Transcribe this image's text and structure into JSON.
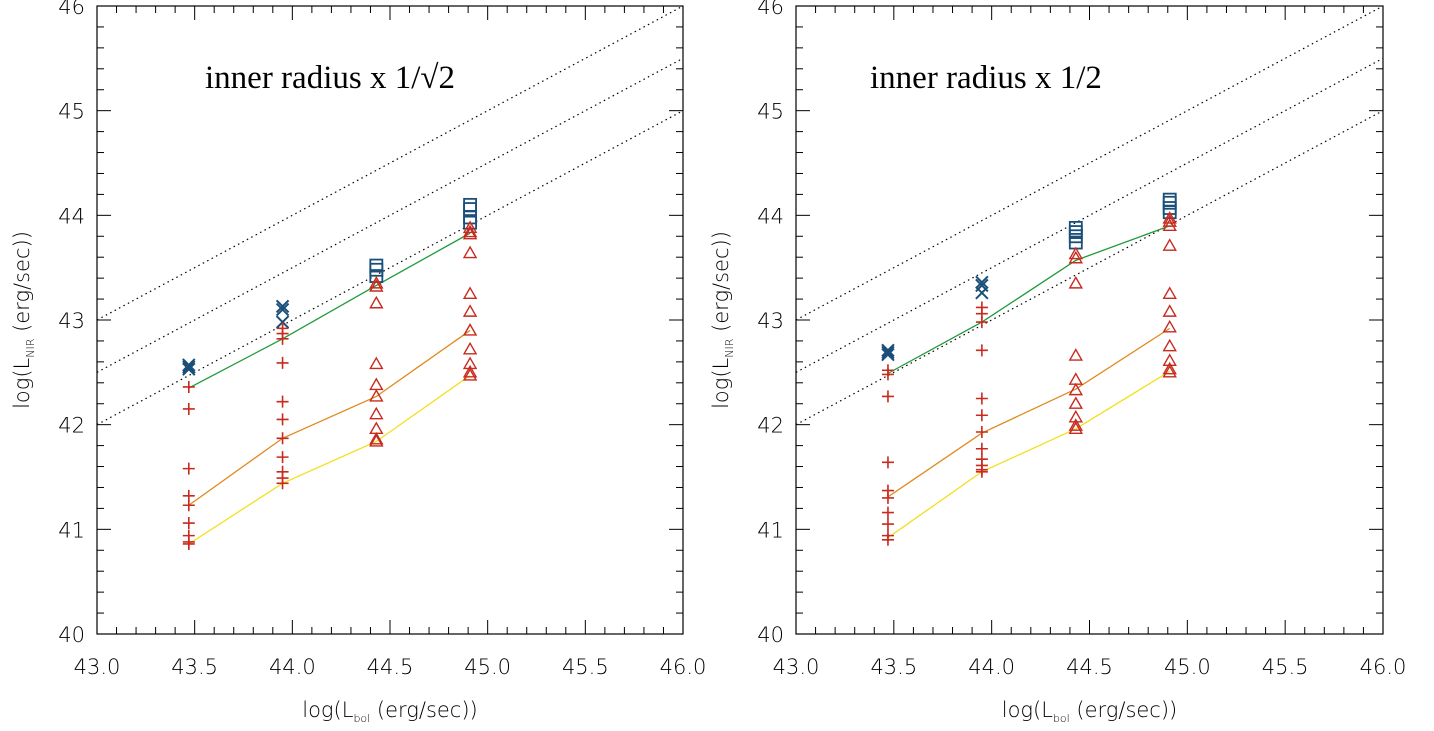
{
  "chart_data": [
    {
      "type": "scatter",
      "title": "inner radius x 1/√2",
      "title_prefix": "inner radius x 1/",
      "title_radical": "√2",
      "xlabel": "log(L_bol (erg/sec))",
      "ylabel": "log(L_NIR (erg/sec))",
      "xlim": [
        43.0,
        46.0
      ],
      "ylim": [
        40,
        46
      ],
      "xticks": [
        "43.0",
        "43.5",
        "44.0",
        "44.5",
        "45.0",
        "45.5",
        "46.0"
      ],
      "yticks": [
        "40",
        "41",
        "42",
        "43",
        "44",
        "45",
        "46"
      ],
      "reference_lines": [
        {
          "style": "dotted",
          "x": [
            43.0,
            46.0
          ],
          "y": [
            43.0,
            46.0
          ]
        },
        {
          "style": "dotted",
          "x": [
            43.0,
            46.0
          ],
          "y": [
            42.5,
            45.5
          ]
        },
        {
          "style": "dotted",
          "x": [
            43.0,
            46.0
          ],
          "y": [
            42.0,
            45.0
          ]
        }
      ],
      "series": [
        {
          "marker": "x",
          "color": "#1a4f7a",
          "x": [
            43.47,
            43.47,
            43.47,
            43.95,
            43.95,
            43.95
          ],
          "y": [
            42.55,
            42.57,
            42.53,
            43.13,
            43.1,
            42.98
          ]
        },
        {
          "marker": "square",
          "color": "#1a4f7a",
          "x": [
            44.43,
            44.43,
            44.43,
            44.91,
            44.91,
            44.91,
            44.91
          ],
          "y": [
            43.52,
            43.48,
            43.42,
            44.1,
            44.06,
            43.98,
            43.93
          ]
        },
        {
          "marker": "plus",
          "color": "#c82a1e",
          "x": [
            43.47,
            43.47,
            43.47,
            43.47,
            43.47,
            43.47,
            43.47,
            43.47,
            43.47,
            43.95,
            43.95,
            43.95,
            43.95,
            43.95,
            43.95,
            43.95,
            43.95,
            43.95,
            43.95,
            43.95
          ],
          "y": [
            42.36,
            42.15,
            41.58,
            41.32,
            41.23,
            41.06,
            40.94,
            40.88,
            40.86,
            42.92,
            42.87,
            42.82,
            42.59,
            42.22,
            42.05,
            41.87,
            41.69,
            41.55,
            41.49,
            41.44
          ]
        },
        {
          "marker": "triangle",
          "color": "#c82a1e",
          "x": [
            44.43,
            44.43,
            44.43,
            44.43,
            44.43,
            44.43,
            44.43,
            44.43,
            44.43,
            44.43,
            44.91,
            44.91,
            44.91,
            44.91,
            44.91,
            44.91,
            44.91,
            44.91,
            44.91,
            44.91,
            44.91
          ],
          "y": [
            43.35,
            43.32,
            43.16,
            42.58,
            42.38,
            42.27,
            42.1,
            41.96,
            41.86,
            41.84,
            43.88,
            43.84,
            43.82,
            43.64,
            43.25,
            43.08,
            42.9,
            42.72,
            42.58,
            42.5,
            42.47
          ]
        }
      ],
      "lines": [
        {
          "color": "#1f9a3a",
          "x": [
            43.47,
            43.95,
            44.43,
            44.91
          ],
          "y": [
            42.35,
            42.82,
            43.33,
            43.83
          ]
        },
        {
          "color": "#e08a1e",
          "x": [
            43.47,
            43.95,
            44.43,
            44.91
          ],
          "y": [
            41.23,
            41.87,
            42.27,
            42.9
          ]
        },
        {
          "color": "#f2e01a",
          "x": [
            43.47,
            43.95,
            44.43,
            44.91
          ],
          "y": [
            40.86,
            41.44,
            41.84,
            42.47
          ]
        }
      ]
    },
    {
      "type": "scatter",
      "title": "inner radius x 1/2",
      "title_prefix": "inner radius x 1/2",
      "title_radical": "",
      "xlabel": "log(L_bol (erg/sec))",
      "ylabel": "log(L_NIR (erg/sec))",
      "xlim": [
        43.0,
        46.0
      ],
      "ylim": [
        40,
        46
      ],
      "xticks": [
        "43.0",
        "43.5",
        "44.0",
        "44.5",
        "45.0",
        "45.5",
        "46.0"
      ],
      "yticks": [
        "40",
        "41",
        "42",
        "43",
        "44",
        "45",
        "46"
      ],
      "reference_lines": [
        {
          "style": "dotted",
          "x": [
            43.0,
            46.0
          ],
          "y": [
            43.0,
            46.0
          ]
        },
        {
          "style": "dotted",
          "x": [
            43.0,
            46.0
          ],
          "y": [
            42.5,
            45.5
          ]
        },
        {
          "style": "dotted",
          "x": [
            43.0,
            46.0
          ],
          "y": [
            42.0,
            45.0
          ]
        }
      ],
      "series": [
        {
          "marker": "x",
          "color": "#1a4f7a",
          "x": [
            43.47,
            43.47,
            43.47,
            43.95,
            43.95,
            43.95
          ],
          "y": [
            42.71,
            42.69,
            42.67,
            43.36,
            43.33,
            43.26
          ]
        },
        {
          "marker": "square",
          "color": "#1a4f7a",
          "x": [
            44.43,
            44.43,
            44.43,
            44.43,
            44.91,
            44.91,
            44.91,
            44.91
          ],
          "y": [
            43.88,
            43.84,
            43.8,
            43.74,
            44.15,
            44.12,
            44.07,
            44.03
          ]
        },
        {
          "marker": "plus",
          "color": "#c82a1e",
          "x": [
            43.47,
            43.47,
            43.47,
            43.47,
            43.47,
            43.47,
            43.47,
            43.47,
            43.47,
            43.47,
            43.95,
            43.95,
            43.95,
            43.95,
            43.95,
            43.95,
            43.95,
            43.95,
            43.95,
            43.95,
            43.95,
            43.95
          ],
          "y": [
            42.52,
            42.48,
            42.27,
            41.64,
            41.37,
            41.3,
            41.16,
            41.05,
            40.94,
            40.9,
            43.12,
            43.06,
            42.98,
            42.71,
            42.25,
            42.09,
            41.93,
            41.77,
            41.67,
            41.61,
            41.57,
            41.55
          ]
        },
        {
          "marker": "triangle",
          "color": "#c82a1e",
          "x": [
            44.43,
            44.43,
            44.43,
            44.43,
            44.43,
            44.43,
            44.43,
            44.43,
            44.43,
            44.43,
            44.91,
            44.91,
            44.91,
            44.91,
            44.91,
            44.91,
            44.91,
            44.91,
            44.91,
            44.91,
            44.91
          ],
          "y": [
            43.63,
            43.59,
            43.35,
            42.66,
            42.43,
            42.33,
            42.2,
            42.07,
            41.99,
            41.96,
            43.97,
            43.94,
            43.9,
            43.71,
            43.25,
            43.08,
            42.93,
            42.75,
            42.61,
            42.53,
            42.5
          ]
        }
      ],
      "lines": [
        {
          "color": "#1f9a3a",
          "x": [
            43.47,
            43.95,
            44.43,
            44.91
          ],
          "y": [
            42.49,
            42.98,
            43.57,
            43.9
          ]
        },
        {
          "color": "#e08a1e",
          "x": [
            43.47,
            43.95,
            44.43,
            44.91
          ],
          "y": [
            41.31,
            41.92,
            42.34,
            42.92
          ]
        },
        {
          "color": "#f2e01a",
          "x": [
            43.47,
            43.95,
            44.43,
            44.91
          ],
          "y": [
            40.92,
            41.55,
            41.96,
            42.51
          ]
        }
      ]
    }
  ]
}
